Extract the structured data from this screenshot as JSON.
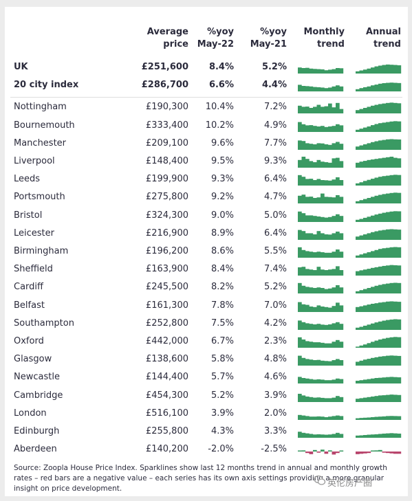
{
  "header": {
    "price": [
      "Average",
      "price"
    ],
    "y22": [
      "%yoy",
      "May-22"
    ],
    "y21": [
      "%yoy",
      "May-21"
    ],
    "monthly": [
      "Monthly",
      "trend"
    ],
    "annual": [
      "Annual",
      "trend"
    ]
  },
  "colors": {
    "positive": "#3a9a63",
    "negative": "#b8456c"
  },
  "chart_data": {
    "type": "table",
    "columns": [
      "",
      "Average price",
      "%yoy May-22",
      "%yoy May-21",
      "Monthly trend",
      "Annual trend"
    ],
    "rows": [
      {
        "city": "UK",
        "price": "£251,600",
        "y22": "8.4%",
        "y21": "5.2%",
        "monthly": [
          0.55,
          0.5,
          0.52,
          0.45,
          0.42,
          0.4,
          0.38,
          0.3,
          0.35,
          0.4,
          0.5,
          0.48
        ],
        "annual": [
          0.2,
          0.28,
          0.36,
          0.45,
          0.55,
          0.65,
          0.72,
          0.78,
          0.82,
          0.8,
          0.78,
          0.75
        ]
      },
      {
        "city": "20 city index",
        "price": "£286,700",
        "y22": "6.6%",
        "y21": "4.4%",
        "monthly": [
          0.6,
          0.5,
          0.48,
          0.45,
          0.4,
          0.38,
          0.35,
          0.3,
          0.35,
          0.45,
          0.55,
          0.45
        ],
        "annual": [
          0.2,
          0.3,
          0.38,
          0.45,
          0.55,
          0.62,
          0.7,
          0.75,
          0.78,
          0.8,
          0.78,
          0.76
        ]
      },
      {
        "city": "Nottingham",
        "price": "£190,300",
        "y22": "10.4%",
        "y21": "7.2%",
        "monthly": [
          0.7,
          0.6,
          0.62,
          0.5,
          0.6,
          0.78,
          0.6,
          0.65,
          0.9,
          0.55,
          0.95,
          0.4
        ],
        "annual": [
          0.3,
          0.4,
          0.5,
          0.6,
          0.7,
          0.78,
          0.85,
          0.9,
          0.95,
          0.98,
          0.95,
          0.92
        ]
      },
      {
        "city": "Bournemouth",
        "price": "£333,400",
        "y22": "10.2%",
        "y21": "4.9%",
        "monthly": [
          0.9,
          0.7,
          0.6,
          0.62,
          0.55,
          0.5,
          0.55,
          0.45,
          0.5,
          0.55,
          0.7,
          0.6
        ],
        "annual": [
          0.2,
          0.3,
          0.4,
          0.5,
          0.62,
          0.72,
          0.8,
          0.85,
          0.9,
          0.95,
          0.98,
          0.96
        ]
      },
      {
        "city": "Manchester",
        "price": "£209,100",
        "y22": "9.6%",
        "y21": "7.7%",
        "monthly": [
          0.85,
          0.8,
          0.6,
          0.55,
          0.5,
          0.6,
          0.58,
          0.5,
          0.45,
          0.6,
          0.72,
          0.55
        ],
        "annual": [
          0.3,
          0.4,
          0.5,
          0.6,
          0.7,
          0.78,
          0.85,
          0.9,
          0.95,
          0.97,
          0.95,
          0.94
        ]
      },
      {
        "city": "Liverpool",
        "price": "£148,400",
        "y22": "9.5%",
        "y21": "9.3%",
        "monthly": [
          0.7,
          1.0,
          0.8,
          0.6,
          0.5,
          0.7,
          0.55,
          0.5,
          0.45,
          0.85,
          0.9,
          0.6
        ],
        "annual": [
          0.45,
          0.55,
          0.62,
          0.7,
          0.75,
          0.8,
          0.85,
          0.9,
          0.95,
          1.0,
          0.9,
          0.85
        ]
      },
      {
        "city": "Leeds",
        "price": "£199,900",
        "y22": "9.3%",
        "y21": "6.4%",
        "monthly": [
          0.95,
          0.8,
          0.6,
          0.62,
          0.5,
          0.6,
          0.5,
          0.48,
          0.45,
          0.55,
          0.75,
          0.5
        ],
        "annual": [
          0.2,
          0.3,
          0.42,
          0.52,
          0.62,
          0.72,
          0.8,
          0.86,
          0.9,
          0.95,
          0.98,
          0.96
        ]
      },
      {
        "city": "Portsmouth",
        "price": "£275,800",
        "y22": "9.2%",
        "y21": "4.7%",
        "monthly": [
          0.7,
          0.8,
          0.6,
          0.62,
          0.5,
          0.55,
          0.9,
          0.6,
          0.58,
          0.55,
          0.75,
          0.6
        ],
        "annual": [
          0.2,
          0.3,
          0.4,
          0.5,
          0.6,
          0.7,
          0.78,
          0.85,
          0.9,
          0.95,
          0.98,
          0.96
        ]
      },
      {
        "city": "Bristol",
        "price": "£324,300",
        "y22": "9.0%",
        "y21": "5.0%",
        "monthly": [
          0.95,
          0.8,
          0.6,
          0.6,
          0.55,
          0.5,
          0.45,
          0.4,
          0.45,
          0.55,
          0.7,
          0.55
        ],
        "annual": [
          0.2,
          0.28,
          0.38,
          0.48,
          0.58,
          0.68,
          0.76,
          0.84,
          0.9,
          0.95,
          0.98,
          0.97
        ]
      },
      {
        "city": "Leicester",
        "price": "£216,900",
        "y22": "8.9%",
        "y21": "6.4%",
        "monthly": [
          0.9,
          0.8,
          0.6,
          0.6,
          0.5,
          0.8,
          0.6,
          0.5,
          0.48,
          0.6,
          0.75,
          0.6
        ],
        "annual": [
          0.3,
          0.4,
          0.5,
          0.6,
          0.7,
          0.78,
          0.85,
          0.9,
          0.95,
          0.97,
          0.95,
          0.93
        ]
      },
      {
        "city": "Birmingham",
        "price": "£196,200",
        "y22": "8.6%",
        "y21": "5.5%",
        "monthly": [
          0.95,
          0.7,
          0.6,
          0.55,
          0.5,
          0.55,
          0.5,
          0.45,
          0.45,
          0.55,
          0.75,
          0.55
        ],
        "annual": [
          0.2,
          0.3,
          0.4,
          0.5,
          0.6,
          0.7,
          0.8,
          0.86,
          0.9,
          0.95,
          0.97,
          0.95
        ]
      },
      {
        "city": "Sheffield",
        "price": "£163,900",
        "y22": "8.4%",
        "y21": "7.4%",
        "monthly": [
          0.75,
          0.8,
          0.6,
          0.55,
          0.5,
          0.8,
          0.55,
          0.5,
          0.55,
          0.6,
          0.85,
          0.5
        ],
        "annual": [
          0.4,
          0.48,
          0.55,
          0.62,
          0.7,
          0.76,
          0.82,
          0.88,
          0.92,
          0.96,
          0.94,
          0.92
        ]
      },
      {
        "city": "Cardiff",
        "price": "£245,500",
        "y22": "8.2%",
        "y21": "5.2%",
        "monthly": [
          0.95,
          0.7,
          0.6,
          0.55,
          0.5,
          0.55,
          0.5,
          0.4,
          0.45,
          0.55,
          0.75,
          0.55
        ],
        "annual": [
          0.2,
          0.3,
          0.4,
          0.5,
          0.6,
          0.7,
          0.78,
          0.85,
          0.9,
          0.95,
          0.97,
          0.95
        ]
      },
      {
        "city": "Belfast",
        "price": "£161,300",
        "y22": "7.8%",
        "y21": "7.0%",
        "monthly": [
          0.9,
          0.7,
          0.65,
          0.5,
          0.45,
          0.6,
          0.5,
          0.45,
          0.4,
          0.55,
          0.85,
          0.6
        ],
        "annual": [
          0.45,
          0.52,
          0.6,
          0.68,
          0.75,
          0.8,
          0.86,
          0.9,
          0.95,
          0.97,
          0.95,
          0.93
        ]
      },
      {
        "city": "Southampton",
        "price": "£252,800",
        "y22": "7.5%",
        "y21": "4.2%",
        "monthly": [
          0.85,
          0.7,
          0.6,
          0.55,
          0.5,
          0.55,
          0.48,
          0.45,
          0.5,
          0.6,
          0.7,
          0.55
        ],
        "annual": [
          0.2,
          0.28,
          0.38,
          0.48,
          0.58,
          0.68,
          0.76,
          0.84,
          0.9,
          0.94,
          0.97,
          0.95
        ]
      },
      {
        "city": "Oxford",
        "price": "£442,000",
        "y22": "6.7%",
        "y21": "2.3%",
        "monthly": [
          0.95,
          0.75,
          0.6,
          0.55,
          0.5,
          0.5,
          0.45,
          0.4,
          0.4,
          0.55,
          0.7,
          0.55
        ],
        "annual": [
          0.1,
          0.2,
          0.3,
          0.42,
          0.54,
          0.65,
          0.75,
          0.83,
          0.9,
          0.95,
          0.98,
          0.96
        ]
      },
      {
        "city": "Glasgow",
        "price": "£138,600",
        "y22": "5.8%",
        "y21": "4.8%",
        "monthly": [
          0.9,
          0.7,
          0.6,
          0.55,
          0.5,
          0.52,
          0.45,
          0.42,
          0.4,
          0.5,
          0.6,
          0.5
        ],
        "annual": [
          0.35,
          0.45,
          0.55,
          0.62,
          0.7,
          0.76,
          0.82,
          0.86,
          0.9,
          0.92,
          0.9,
          0.88
        ]
      },
      {
        "city": "Newcastle",
        "price": "£144,400",
        "y22": "5.7%",
        "y21": "4.6%",
        "monthly": [
          0.6,
          0.5,
          0.45,
          0.4,
          0.35,
          0.38,
          0.35,
          0.3,
          0.3,
          0.35,
          0.45,
          0.4
        ],
        "annual": [
          0.25,
          0.3,
          0.35,
          0.4,
          0.45,
          0.5,
          0.52,
          0.55,
          0.58,
          0.6,
          0.58,
          0.56
        ]
      },
      {
        "city": "Cambridge",
        "price": "£454,300",
        "y22": "5.2%",
        "y21": "3.9%",
        "monthly": [
          0.75,
          0.6,
          0.5,
          0.45,
          0.4,
          0.42,
          0.38,
          0.35,
          0.35,
          0.4,
          0.55,
          0.45
        ],
        "annual": [
          0.3,
          0.35,
          0.4,
          0.45,
          0.5,
          0.55,
          0.6,
          0.62,
          0.65,
          0.68,
          0.66,
          0.64
        ]
      },
      {
        "city": "London",
        "price": "£516,100",
        "y22": "3.9%",
        "y21": "2.0%",
        "monthly": [
          0.45,
          0.4,
          0.35,
          0.3,
          0.3,
          0.32,
          0.3,
          0.25,
          0.3,
          0.35,
          0.4,
          0.35
        ],
        "annual": [
          0.15,
          0.18,
          0.2,
          0.22,
          0.25,
          0.28,
          0.3,
          0.32,
          0.35,
          0.36,
          0.35,
          0.34
        ]
      },
      {
        "city": "Edinburgh",
        "price": "£255,800",
        "y22": "4.3%",
        "y21": "3.3%",
        "monthly": [
          0.55,
          0.45,
          0.4,
          0.35,
          0.3,
          0.32,
          0.3,
          0.28,
          0.3,
          0.35,
          0.45,
          0.35
        ],
        "annual": [
          0.2,
          0.22,
          0.25,
          0.28,
          0.3,
          0.32,
          0.35,
          0.38,
          0.4,
          0.42,
          0.4,
          0.38
        ]
      },
      {
        "city": "Aberdeen",
        "price": "£140,200",
        "y22": "-2.0%",
        "y21": "-2.5%",
        "monthly": [
          0.1,
          0.15,
          -0.2,
          -0.35,
          0.2,
          -0.15,
          0.25,
          -0.3,
          0.15,
          -0.4,
          -0.2,
          0.1
        ],
        "annual": [
          -0.35,
          -0.3,
          -0.25,
          -0.2,
          0.1,
          0.15,
          0.2,
          -0.15,
          -0.2,
          -0.25,
          -0.3,
          -0.3
        ]
      }
    ]
  },
  "source_text": "Source: Zoopla House Price Index. Sparklines show last 12 months trend in annual and monthly growth rates – red bars are a negative value – each series has its own axis settings providing a more granular insight on price development.",
  "watermark": "英伦房产圈"
}
